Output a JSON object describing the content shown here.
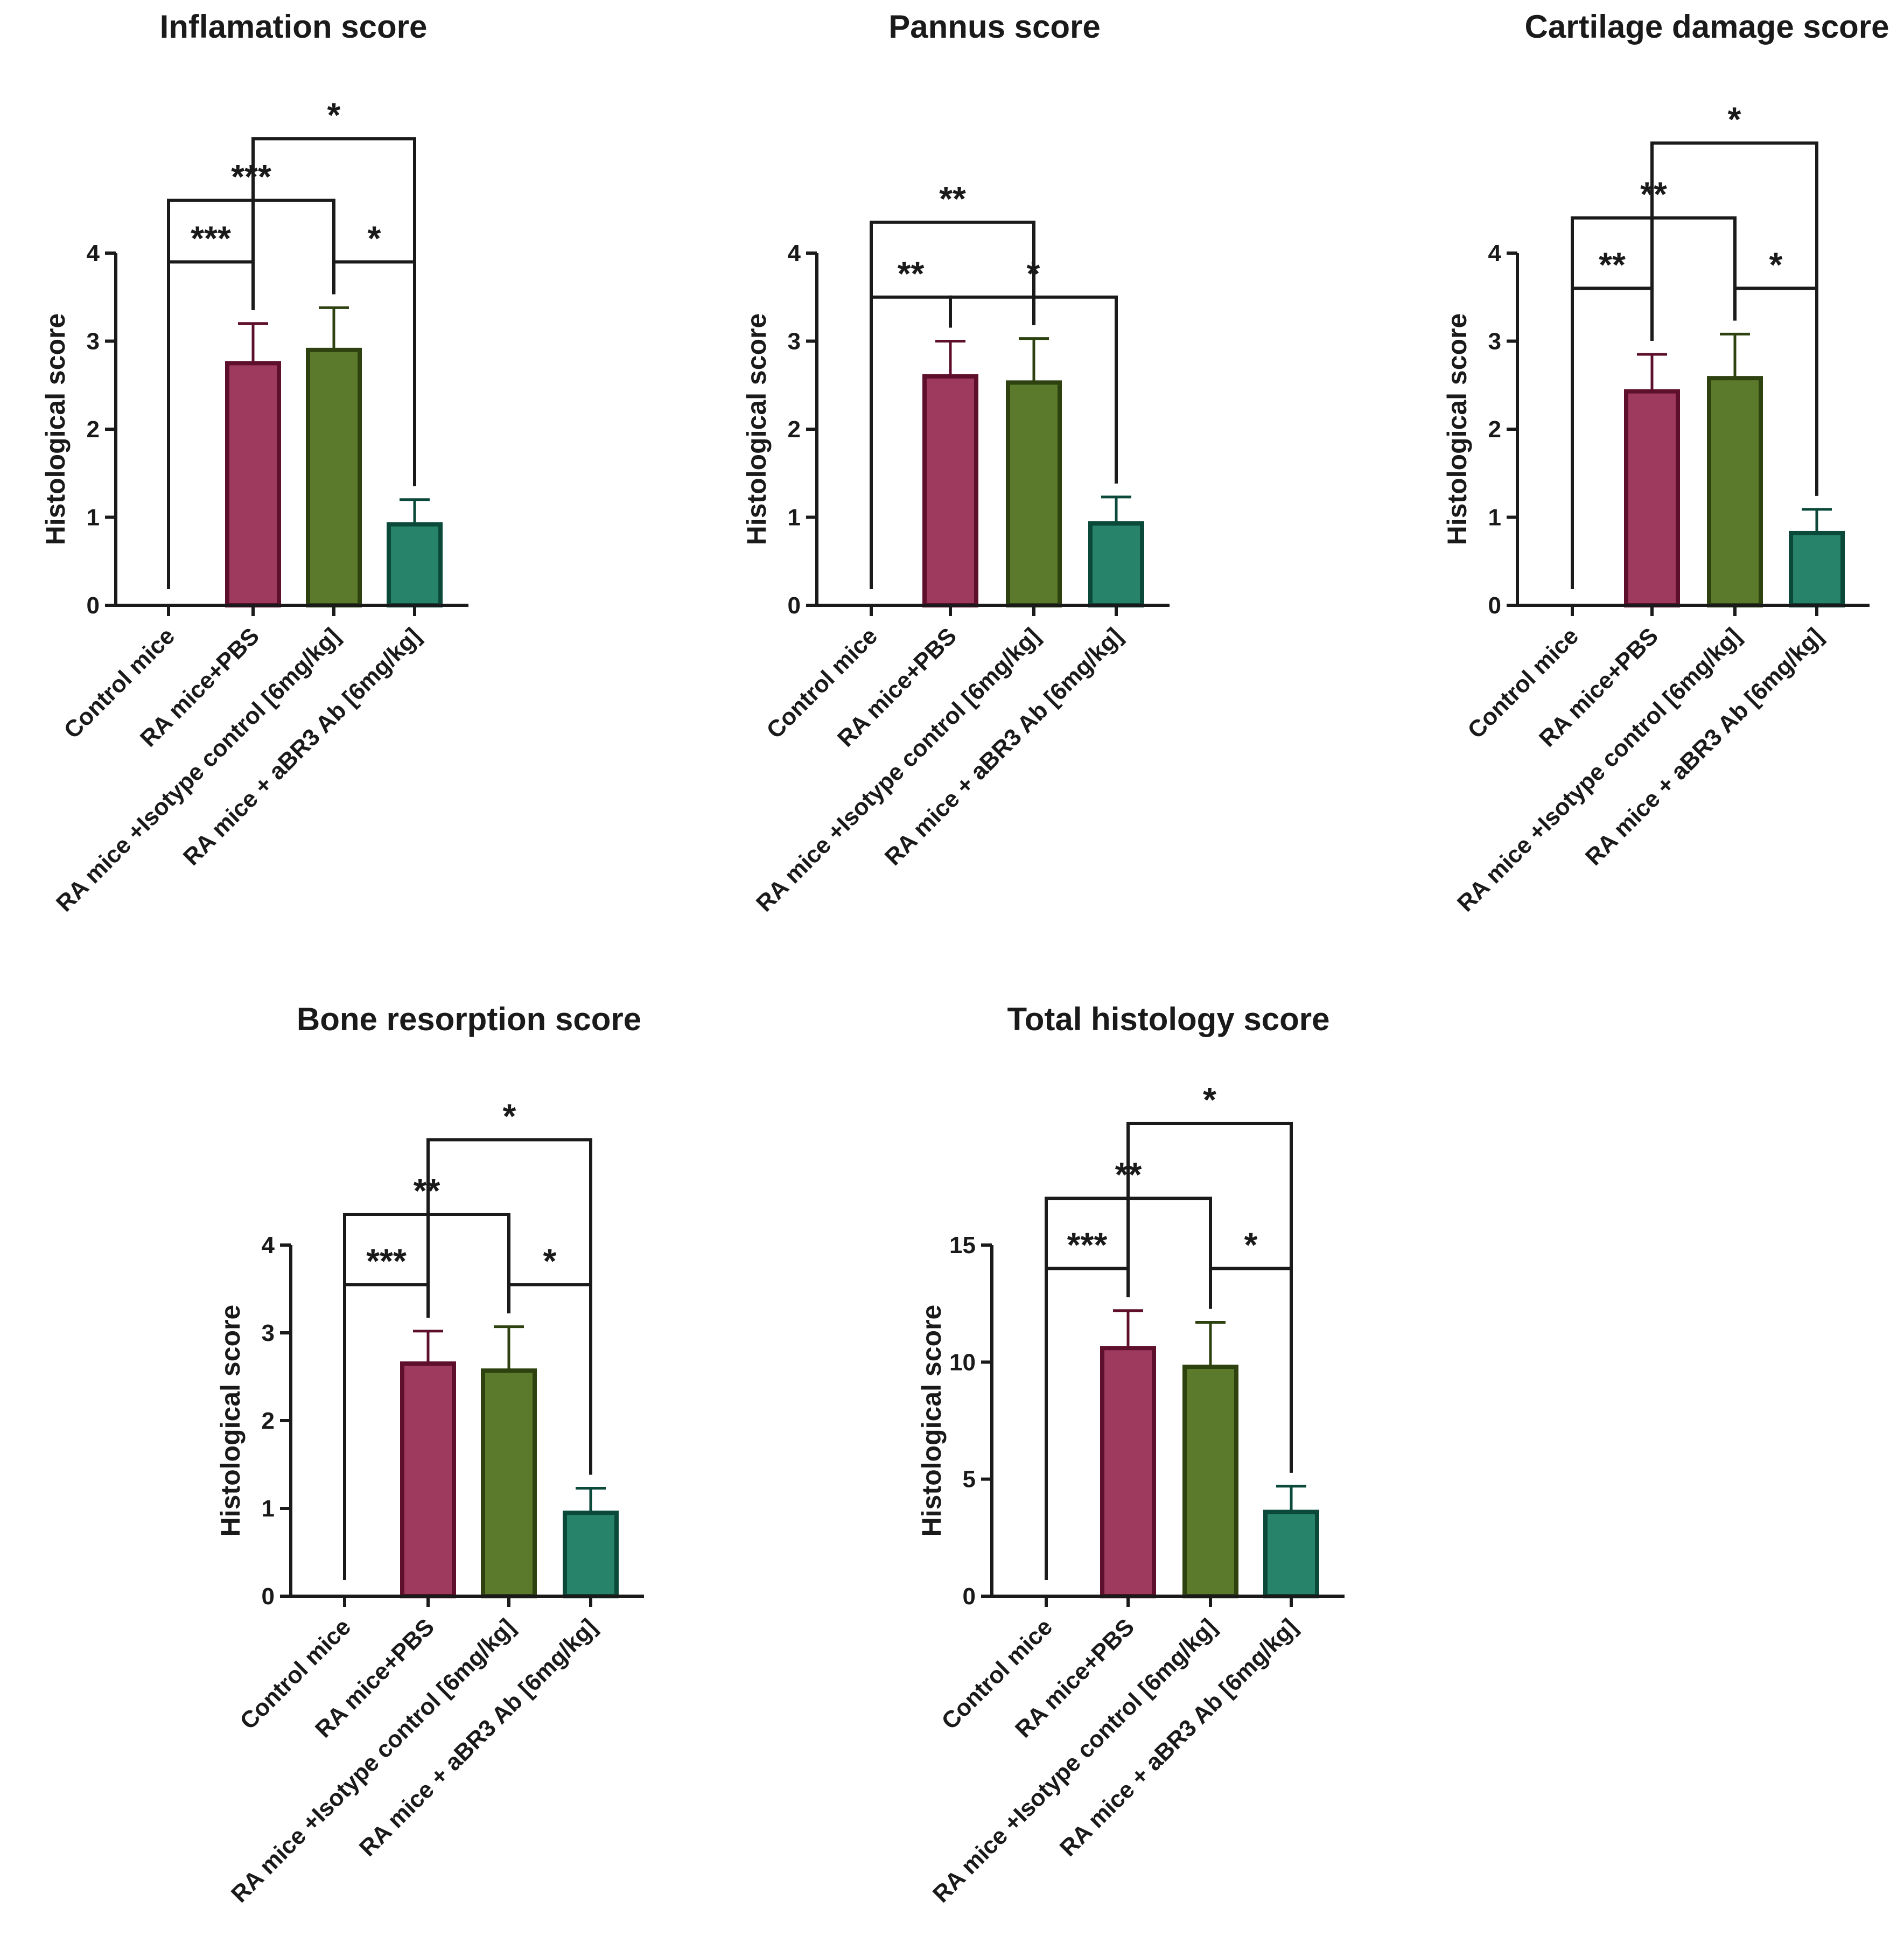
{
  "colors": {
    "axis": "#1a1a1a",
    "pbs_fill": "#9e3a5e",
    "pbs_edge": "#5e0f2c",
    "isotype_fill": "#5c7a2c",
    "isotype_edge": "#2e4210",
    "ab_fill": "#27836a",
    "ab_edge": "#0b4a3a"
  },
  "chart_data": [
    {
      "type": "bar",
      "title": "Inflamation score",
      "ylabel": "Histological score",
      "ylim": [
        0,
        4
      ],
      "yticks": [
        "0",
        "1",
        "2",
        "3",
        "4"
      ],
      "categories": [
        "Control mice",
        "RA mice+PBS",
        "RA mice +Isotype control [6mg/kg]",
        "RA mice + aBR3 Ab [6mg/kg]"
      ],
      "values": [
        0,
        2.75,
        2.9,
        0.92
      ],
      "errors": [
        0,
        0.45,
        0.48,
        0.28
      ],
      "significance": [
        {
          "from": 0,
          "to": 1,
          "y": 3.9,
          "label": "***"
        },
        {
          "from": 2,
          "to": 3,
          "y": 3.9,
          "label": "*"
        },
        {
          "from": 0,
          "to": 2,
          "y": 4.6,
          "label": "***"
        },
        {
          "from": 1,
          "to": 3,
          "y": 5.3,
          "label": "*"
        }
      ]
    },
    {
      "type": "bar",
      "title": "Pannus score",
      "ylabel": "Histological score",
      "ylim": [
        0,
        4
      ],
      "yticks": [
        "0",
        "1",
        "2",
        "3",
        "4"
      ],
      "categories": [
        "Control mice",
        "RA mice+PBS",
        "RA mice +Isotype control [6mg/kg]",
        "RA mice + aBR3 Ab [6mg/kg]"
      ],
      "values": [
        0,
        2.6,
        2.53,
        0.93
      ],
      "errors": [
        0,
        0.4,
        0.5,
        0.3
      ],
      "significance": [
        {
          "from": 0,
          "to": 1,
          "y": 3.5,
          "label": "**"
        },
        {
          "from": 1,
          "to": 3,
          "y": 3.5,
          "label": "*"
        },
        {
          "from": 0,
          "to": 2,
          "y": 4.35,
          "label": "**"
        }
      ]
    },
    {
      "type": "bar",
      "title": "Cartilage damage score",
      "ylabel": "Histological score",
      "ylim": [
        0,
        4
      ],
      "yticks": [
        "0",
        "1",
        "2",
        "3",
        "4"
      ],
      "categories": [
        "Control mice",
        "RA mice+PBS",
        "RA mice +Isotype control [6mg/kg]",
        "RA mice + aBR3 Ab [6mg/kg]"
      ],
      "values": [
        0,
        2.43,
        2.58,
        0.82
      ],
      "errors": [
        0,
        0.42,
        0.5,
        0.27
      ],
      "significance": [
        {
          "from": 0,
          "to": 1,
          "y": 3.6,
          "label": "**"
        },
        {
          "from": 2,
          "to": 3,
          "y": 3.6,
          "label": "*"
        },
        {
          "from": 0,
          "to": 2,
          "y": 4.4,
          "label": "**"
        },
        {
          "from": 1,
          "to": 3,
          "y": 5.25,
          "label": "*"
        }
      ]
    },
    {
      "type": "bar",
      "title": "Bone resorption score",
      "ylabel": "Histological score",
      "ylim": [
        0,
        4
      ],
      "yticks": [
        "0",
        "1",
        "2",
        "3",
        "4"
      ],
      "categories": [
        "Control mice",
        "RA mice+PBS",
        "RA mice +Isotype control [6mg/kg]",
        "RA mice + aBR3 Ab [6mg/kg]"
      ],
      "values": [
        0,
        2.65,
        2.57,
        0.95
      ],
      "errors": [
        0,
        0.37,
        0.5,
        0.28
      ],
      "significance": [
        {
          "from": 0,
          "to": 1,
          "y": 3.55,
          "label": "***"
        },
        {
          "from": 2,
          "to": 3,
          "y": 3.55,
          "label": "*"
        },
        {
          "from": 0,
          "to": 2,
          "y": 4.35,
          "label": "**"
        },
        {
          "from": 1,
          "to": 3,
          "y": 5.2,
          "label": "*"
        }
      ]
    },
    {
      "type": "bar",
      "title": "Total histology score",
      "ylabel": "Histological score",
      "ylim": [
        0,
        15
      ],
      "yticks": [
        "0",
        "5",
        "10",
        "15"
      ],
      "categories": [
        "Control mice",
        "RA mice+PBS",
        "RA mice +Isotype control [6mg/kg]",
        "RA mice + aBR3 Ab [6mg/kg]"
      ],
      "values": [
        0,
        10.6,
        9.8,
        3.6
      ],
      "errors": [
        0,
        1.6,
        1.9,
        1.1
      ],
      "significance": [
        {
          "from": 0,
          "to": 1,
          "y": 14,
          "label": "***"
        },
        {
          "from": 2,
          "to": 3,
          "y": 14,
          "label": "*"
        },
        {
          "from": 0,
          "to": 2,
          "y": 17,
          "label": "**"
        },
        {
          "from": 1,
          "to": 3,
          "y": 20.2,
          "label": "*"
        }
      ]
    }
  ]
}
